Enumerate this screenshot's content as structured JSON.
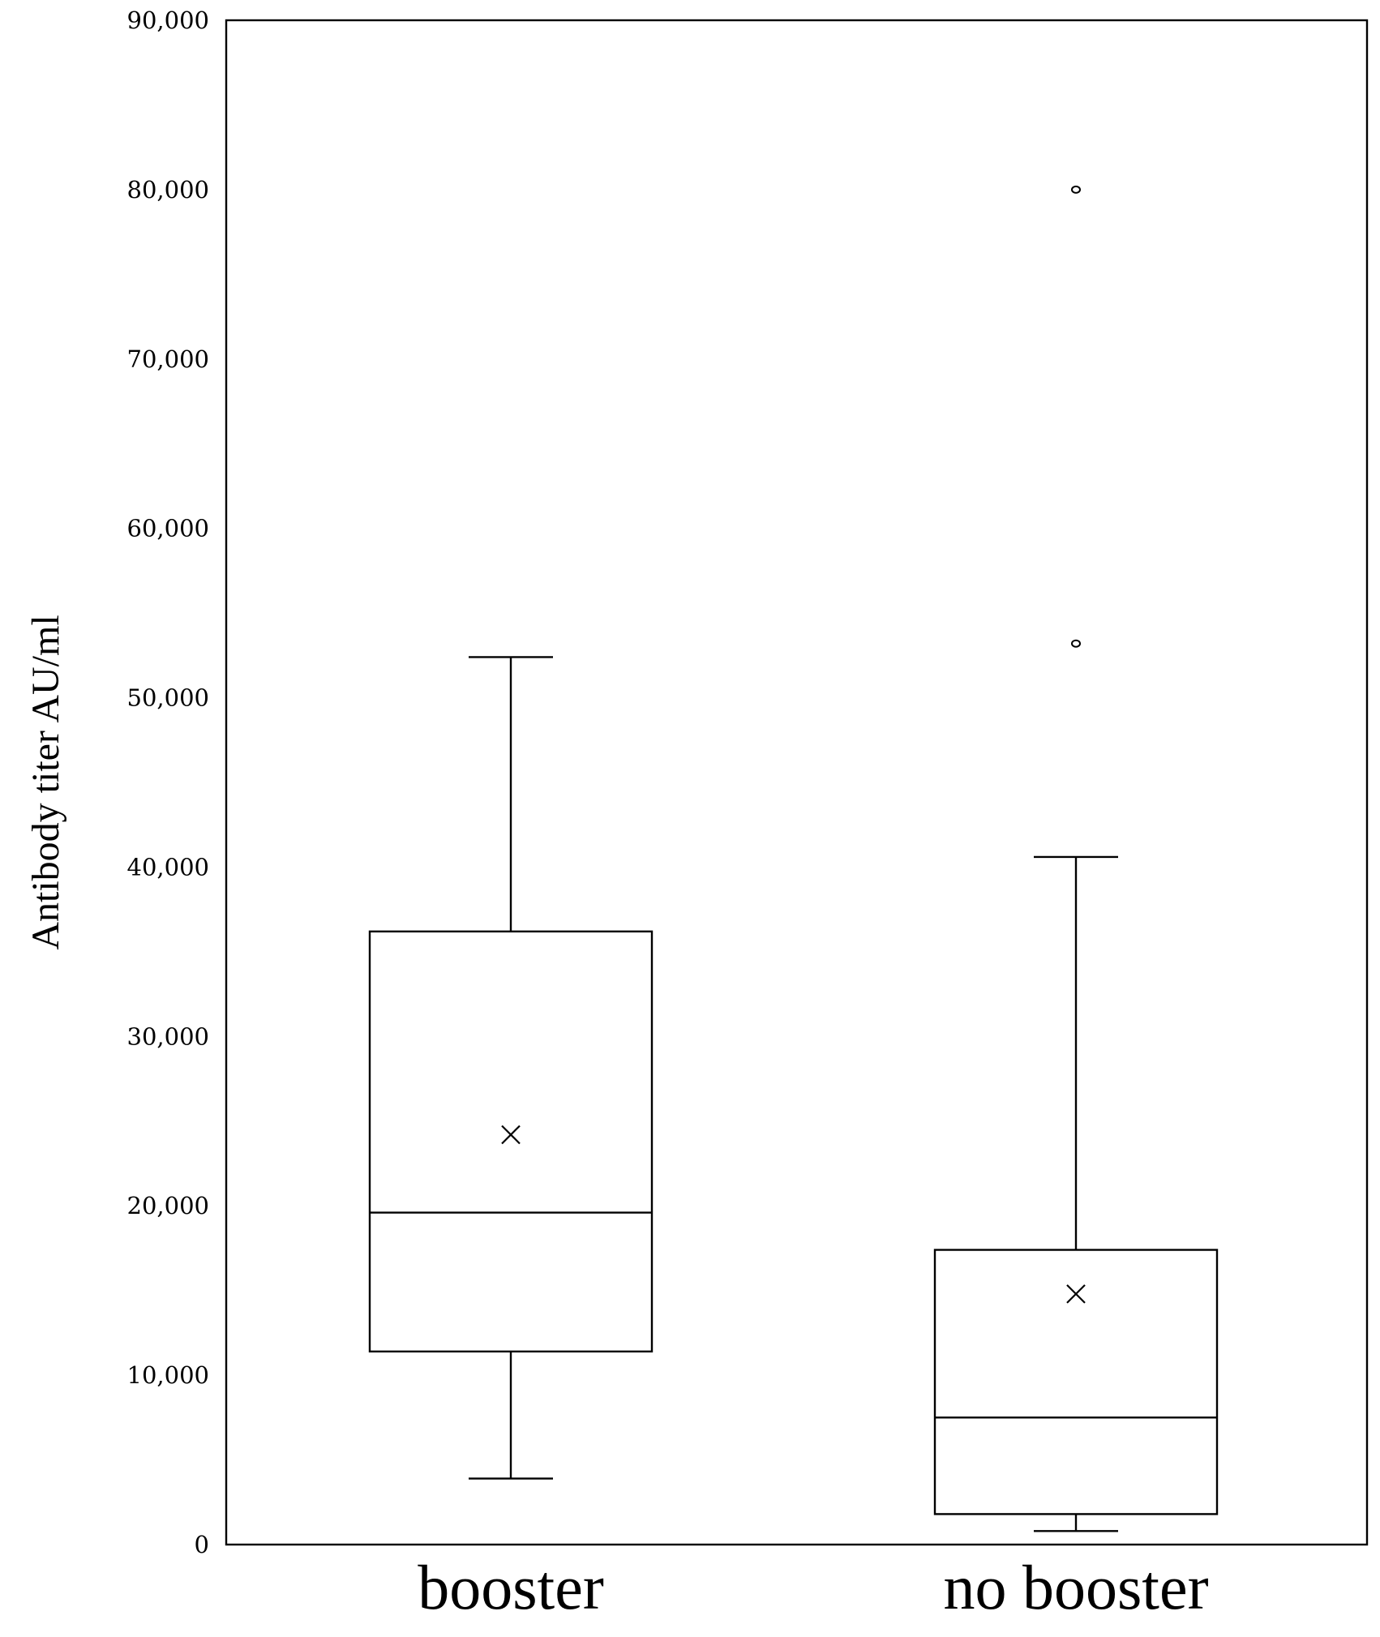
{
  "chart_data": {
    "type": "box",
    "ylabel": "Antibody titer  AU/ml",
    "ylim": [
      0,
      90000
    ],
    "yticks": [
      0,
      10000,
      20000,
      30000,
      40000,
      50000,
      60000,
      70000,
      80000,
      90000
    ],
    "ytick_labels": [
      "0",
      "10,000",
      "20,000",
      "30,000",
      "40,000",
      "50,000",
      "60,000",
      "70,000",
      "80,000",
      "90,000"
    ],
    "grid": false,
    "categories": [
      "booster",
      "no booster"
    ],
    "boxes": [
      {
        "category": "booster",
        "whisker_low": 3900,
        "q1": 11400,
        "median": 19600,
        "q3": 36200,
        "whisker_high": 52400,
        "mean": 24200,
        "outliers": []
      },
      {
        "category": "no booster",
        "whisker_low": 800,
        "q1": 1800,
        "median": 7500,
        "q3": 17400,
        "whisker_high": 40600,
        "mean": 14800,
        "outliers": [
          53200,
          80000
        ]
      }
    ]
  }
}
